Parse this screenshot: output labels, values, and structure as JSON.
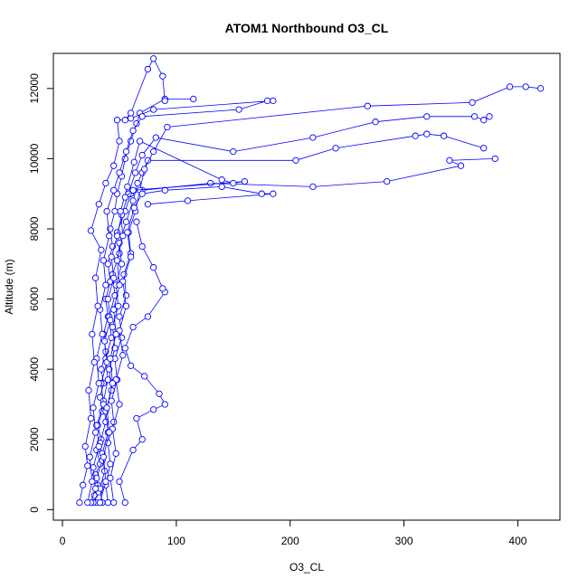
{
  "chart_data": {
    "type": "line",
    "title": "ATOM1 Northbound O3_CL",
    "xlabel": "O3_CL",
    "ylabel": "Altitude (m)",
    "xlim": [
      -8,
      437
    ],
    "ylim": [
      -300,
      13000
    ],
    "x_ticks": [
      0,
      100,
      200,
      300,
      400
    ],
    "y_ticks": [
      0,
      2000,
      4000,
      6000,
      8000,
      10000,
      12000
    ],
    "grid": false,
    "series_color": "#0000ff",
    "marker": "open-circle",
    "series": [
      {
        "values": [
          [
            30,
            200
          ],
          [
            28,
            400
          ],
          [
            31,
            700
          ],
          [
            29,
            1000
          ],
          [
            33,
            1300
          ],
          [
            30,
            1700
          ],
          [
            34,
            2000
          ],
          [
            31,
            2400
          ],
          [
            35,
            2800
          ],
          [
            33,
            3200
          ],
          [
            36,
            3600
          ],
          [
            34,
            4000
          ],
          [
            38,
            4500
          ],
          [
            36,
            5000
          ],
          [
            40,
            5500
          ],
          [
            38,
            6000
          ],
          [
            42,
            6500
          ],
          [
            40,
            7000
          ],
          [
            44,
            7500
          ],
          [
            42,
            8000
          ],
          [
            46,
            8500
          ],
          [
            48,
            9000
          ],
          [
            52,
            9500
          ],
          [
            55,
            10000
          ],
          [
            60,
            10500
          ],
          [
            65,
            11000
          ],
          [
            68,
            11300
          ],
          [
            90,
            11700
          ],
          [
            115,
            11700
          ]
        ]
      },
      {
        "values": [
          [
            27,
            200
          ],
          [
            32,
            500
          ],
          [
            30,
            900
          ],
          [
            35,
            1400
          ],
          [
            33,
            1900
          ],
          [
            38,
            2500
          ],
          [
            36,
            3100
          ],
          [
            40,
            3700
          ],
          [
            38,
            4300
          ],
          [
            43,
            4900
          ],
          [
            41,
            5500
          ],
          [
            46,
            6100
          ],
          [
            44,
            6700
          ],
          [
            50,
            7300
          ],
          [
            48,
            7900
          ],
          [
            55,
            8500
          ],
          [
            60,
            9000
          ],
          [
            70,
            9100
          ],
          [
            130,
            9300
          ],
          [
            220,
            9200
          ],
          [
            285,
            9350
          ],
          [
            350,
            9800
          ],
          [
            340,
            9950
          ],
          [
            380,
            10000
          ]
        ]
      },
      {
        "values": [
          [
            35,
            200
          ],
          [
            33,
            600
          ],
          [
            37,
            1100
          ],
          [
            35,
            1600
          ],
          [
            40,
            2200
          ],
          [
            38,
            2800
          ],
          [
            43,
            3400
          ],
          [
            41,
            4000
          ],
          [
            46,
            4600
          ],
          [
            44,
            5200
          ],
          [
            49,
            5800
          ],
          [
            47,
            6400
          ],
          [
            52,
            7000
          ],
          [
            50,
            7600
          ],
          [
            56,
            8200
          ],
          [
            62,
            8800
          ],
          [
            66,
            9300
          ],
          [
            70,
            9600
          ],
          [
            75,
            9950
          ],
          [
            205,
            9950
          ],
          [
            240,
            10300
          ],
          [
            310,
            10650
          ],
          [
            320,
            10700
          ],
          [
            335,
            10650
          ],
          [
            370,
            10300
          ]
        ]
      },
      {
        "values": [
          [
            25,
            200
          ],
          [
            29,
            600
          ],
          [
            27,
            1200
          ],
          [
            32,
            1800
          ],
          [
            30,
            2400
          ],
          [
            36,
            3000
          ],
          [
            34,
            3600
          ],
          [
            39,
            4200
          ],
          [
            37,
            4800
          ],
          [
            42,
            5400
          ],
          [
            40,
            6000
          ],
          [
            45,
            6600
          ],
          [
            43,
            7200
          ],
          [
            48,
            7800
          ],
          [
            52,
            8400
          ],
          [
            58,
            9000
          ],
          [
            64,
            9600
          ],
          [
            70,
            10100
          ],
          [
            82,
            10600
          ],
          [
            150,
            10200
          ],
          [
            220,
            10600
          ],
          [
            275,
            11050
          ],
          [
            320,
            11200
          ],
          [
            362,
            11200
          ],
          [
            370,
            11100
          ],
          [
            375,
            11200
          ]
        ]
      },
      {
        "values": [
          [
            40,
            200
          ],
          [
            38,
            700
          ],
          [
            42,
            1300
          ],
          [
            40,
            1900
          ],
          [
            45,
            2500
          ],
          [
            43,
            3100
          ],
          [
            48,
            3700
          ],
          [
            46,
            4300
          ],
          [
            52,
            4900
          ],
          [
            50,
            5500
          ],
          [
            56,
            6100
          ],
          [
            54,
            6700
          ],
          [
            60,
            7300
          ],
          [
            58,
            7900
          ],
          [
            64,
            8500
          ],
          [
            68,
            9100
          ],
          [
            72,
            9700
          ],
          [
            80,
            10200
          ],
          [
            92,
            10900
          ],
          [
            268,
            11500
          ],
          [
            360,
            11600
          ],
          [
            393,
            12050
          ],
          [
            407,
            12050
          ],
          [
            420,
            12000
          ]
        ]
      },
      {
        "values": [
          [
            22,
            200
          ],
          [
            26,
            800
          ],
          [
            24,
            1500
          ],
          [
            29,
            2200
          ],
          [
            27,
            2900
          ],
          [
            32,
            3600
          ],
          [
            30,
            4300
          ],
          [
            35,
            5000
          ],
          [
            33,
            5700
          ],
          [
            38,
            6400
          ],
          [
            36,
            7100
          ],
          [
            41,
            7800
          ],
          [
            39,
            8500
          ],
          [
            45,
            9100
          ],
          [
            50,
            9600
          ],
          [
            56,
            10200
          ],
          [
            62,
            10800
          ],
          [
            70,
            11200
          ],
          [
            155,
            11400
          ],
          [
            180,
            11650
          ],
          [
            185,
            11650
          ],
          [
            80,
            11400
          ],
          [
            60,
            11150
          ]
        ]
      },
      {
        "values": [
          [
            45,
            200
          ],
          [
            42,
            900
          ],
          [
            47,
            1600
          ],
          [
            44,
            2300
          ],
          [
            50,
            3000
          ],
          [
            47,
            3700
          ],
          [
            53,
            4400
          ],
          [
            50,
            5100
          ],
          [
            56,
            5800
          ],
          [
            53,
            6500
          ],
          [
            60,
            7200
          ],
          [
            57,
            7900
          ],
          [
            63,
            8600
          ],
          [
            70,
            9000
          ],
          [
            90,
            9100
          ],
          [
            140,
            9200
          ],
          [
            175,
            9000
          ],
          [
            185,
            9000
          ],
          [
            110,
            8800
          ],
          [
            75,
            8700
          ]
        ]
      },
      {
        "values": [
          [
            15,
            200
          ],
          [
            18,
            700
          ],
          [
            22,
            1250
          ],
          [
            20,
            1800
          ],
          [
            25,
            2600
          ],
          [
            23,
            3400
          ],
          [
            28,
            4200
          ],
          [
            26,
            5000
          ],
          [
            31,
            5800
          ],
          [
            29,
            6600
          ],
          [
            34,
            7400
          ],
          [
            25,
            7950
          ],
          [
            32,
            8700
          ],
          [
            38,
            9300
          ],
          [
            45,
            9800
          ],
          [
            50,
            10500
          ],
          [
            48,
            11100
          ],
          [
            55,
            11100
          ],
          [
            60,
            11300
          ],
          [
            75,
            12550
          ],
          [
            80,
            12850
          ],
          [
            88,
            12350
          ],
          [
            90,
            11650
          ]
        ]
      },
      {
        "values": [
          [
            55,
            200
          ],
          [
            50,
            800
          ],
          [
            62,
            1700
          ],
          [
            70,
            2000
          ],
          [
            65,
            2600
          ],
          [
            80,
            2850
          ],
          [
            90,
            3000
          ],
          [
            85,
            3300
          ],
          [
            72,
            3800
          ],
          [
            60,
            4100
          ],
          [
            55,
            4600
          ],
          [
            62,
            5200
          ],
          [
            75,
            5500
          ],
          [
            90,
            6200
          ],
          [
            88,
            6300
          ],
          [
            80,
            6900
          ],
          [
            70,
            7500
          ],
          [
            65,
            8200
          ]
        ]
      },
      {
        "values": [
          [
            33,
            200
          ],
          [
            38,
            800
          ],
          [
            36,
            1500
          ],
          [
            41,
            2200
          ],
          [
            39,
            2900
          ],
          [
            44,
            3600
          ],
          [
            42,
            4300
          ],
          [
            47,
            5000
          ],
          [
            45,
            5700
          ],
          [
            50,
            6400
          ],
          [
            48,
            7100
          ],
          [
            53,
            7800
          ],
          [
            51,
            8500
          ],
          [
            57,
            9200
          ],
          [
            63,
            9900
          ],
          [
            68,
            10500
          ],
          [
            140,
            9400
          ],
          [
            150,
            9300
          ],
          [
            160,
            9350
          ],
          [
            62,
            9100
          ],
          [
            55,
            8900
          ]
        ]
      }
    ]
  }
}
